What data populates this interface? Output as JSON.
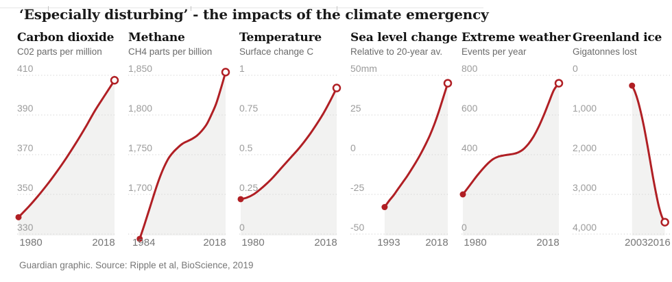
{
  "page": {
    "title": "‘Especially disturbing’ - the impacts of the climate emergency",
    "footer": "Guardian graphic. Source: Ripple et al, BioScience, 2019",
    "colors": {
      "line_red": "#b01f24",
      "area_gray": "#f2f2f1",
      "grid_gray": "#d8d8d8",
      "ytick_gray": "#9b9b9b",
      "xtick_gray": "#767676"
    }
  },
  "chart_data": [
    {
      "type": "area",
      "title": "Carbon dioxide",
      "subtitle": "C02 parts per million",
      "x_years": [
        1980,
        2018
      ],
      "x_start_label": "1980",
      "x_end_label": "2018",
      "yticks": [
        {
          "value": 410,
          "label": "410"
        },
        {
          "value": 390,
          "label": "390"
        },
        {
          "value": 370,
          "label": "370"
        },
        {
          "value": 350,
          "label": "350"
        },
        {
          "value": 330,
          "label": "330"
        }
      ],
      "points": [
        338.5,
        343.5,
        349,
        355,
        361.5,
        368.5,
        376,
        384,
        392.5,
        400,
        407.5
      ]
    },
    {
      "type": "area",
      "title": "Methane",
      "subtitle": "CH4 parts per billion",
      "x_years": [
        1984,
        2018
      ],
      "x_start_label": "1984",
      "x_end_label": "2018",
      "yticks": [
        {
          "value": 1850,
          "label": "1,850"
        },
        {
          "value": 1800,
          "label": "1,800"
        },
        {
          "value": 1750,
          "label": "1,750"
        },
        {
          "value": 1700,
          "label": "1,700"
        },
        {
          "value": 1650,
          "label": ""
        }
      ],
      "points": [
        1644,
        1662,
        1681,
        1700,
        1718,
        1733,
        1745,
        1753,
        1759,
        1764,
        1767,
        1770,
        1774,
        1780,
        1788,
        1800,
        1814,
        1833,
        1854
      ]
    },
    {
      "type": "area",
      "title": "Temperature",
      "subtitle": "Surface change C",
      "x_years": [
        1980,
        2018
      ],
      "x_start_label": "1980",
      "x_end_label": "2018",
      "yticks": [
        {
          "value": 1,
          "label": "1"
        },
        {
          "value": 0.75,
          "label": "0.75"
        },
        {
          "value": 0.5,
          "label": "0.5"
        },
        {
          "value": 0.25,
          "label": "0.25"
        },
        {
          "value": 0,
          "label": "0"
        }
      ],
      "points": [
        0.22,
        0.23,
        0.25,
        0.28,
        0.315,
        0.355,
        0.4,
        0.445,
        0.49,
        0.535,
        0.585,
        0.64,
        0.7,
        0.765,
        0.84,
        0.92
      ]
    },
    {
      "type": "area",
      "title": "Sea level change",
      "subtitle": "Relative to 20-year av.",
      "x_years": [
        1993,
        2018
      ],
      "x_start_label": "1993",
      "x_end_label": "2018",
      "yticks": [
        {
          "value": 50,
          "label": "50mm"
        },
        {
          "value": 25,
          "label": "25"
        },
        {
          "value": 0,
          "label": "0"
        },
        {
          "value": -25,
          "label": "-25"
        },
        {
          "value": -50,
          "label": "-50"
        }
      ],
      "points": [
        -33,
        -29,
        -25.5,
        -21.5,
        -17.5,
        -13.5,
        -9,
        -4.5,
        0.5,
        6,
        12,
        19,
        27,
        36,
        45
      ]
    },
    {
      "type": "area",
      "title": "Extreme weather",
      "subtitle": "Events per year",
      "x_years": [
        1980,
        2018
      ],
      "x_start_label": "1980",
      "x_end_label": "2018",
      "yticks": [
        {
          "value": 800,
          "label": "800"
        },
        {
          "value": 600,
          "label": "600"
        },
        {
          "value": 400,
          "label": "400"
        },
        {
          "value": 200,
          "label": ""
        },
        {
          "value": 0,
          "label": "0"
        }
      ],
      "points": [
        200,
        233,
        267,
        300,
        330,
        357,
        378,
        390,
        396,
        400,
        404,
        412,
        428,
        455,
        492,
        540,
        598,
        662,
        725,
        760
      ]
    },
    {
      "type": "area",
      "title": "Greenland ice",
      "subtitle": "Gigatonnes lost",
      "x_years": [
        2003,
        2016
      ],
      "x_start_label": "2003",
      "x_end_label": "2016",
      "yticks": [
        {
          "value": 0,
          "label": "0"
        },
        {
          "value": 1000,
          "label": "1,000"
        },
        {
          "value": 2000,
          "label": "2,000"
        },
        {
          "value": 3000,
          "label": "3,000"
        },
        {
          "value": 4000,
          "label": "4,000"
        }
      ],
      "points": [
        260,
        420,
        650,
        950,
        1300,
        1700,
        2130,
        2560,
        2960,
        3310,
        3560,
        3700
      ]
    }
  ]
}
